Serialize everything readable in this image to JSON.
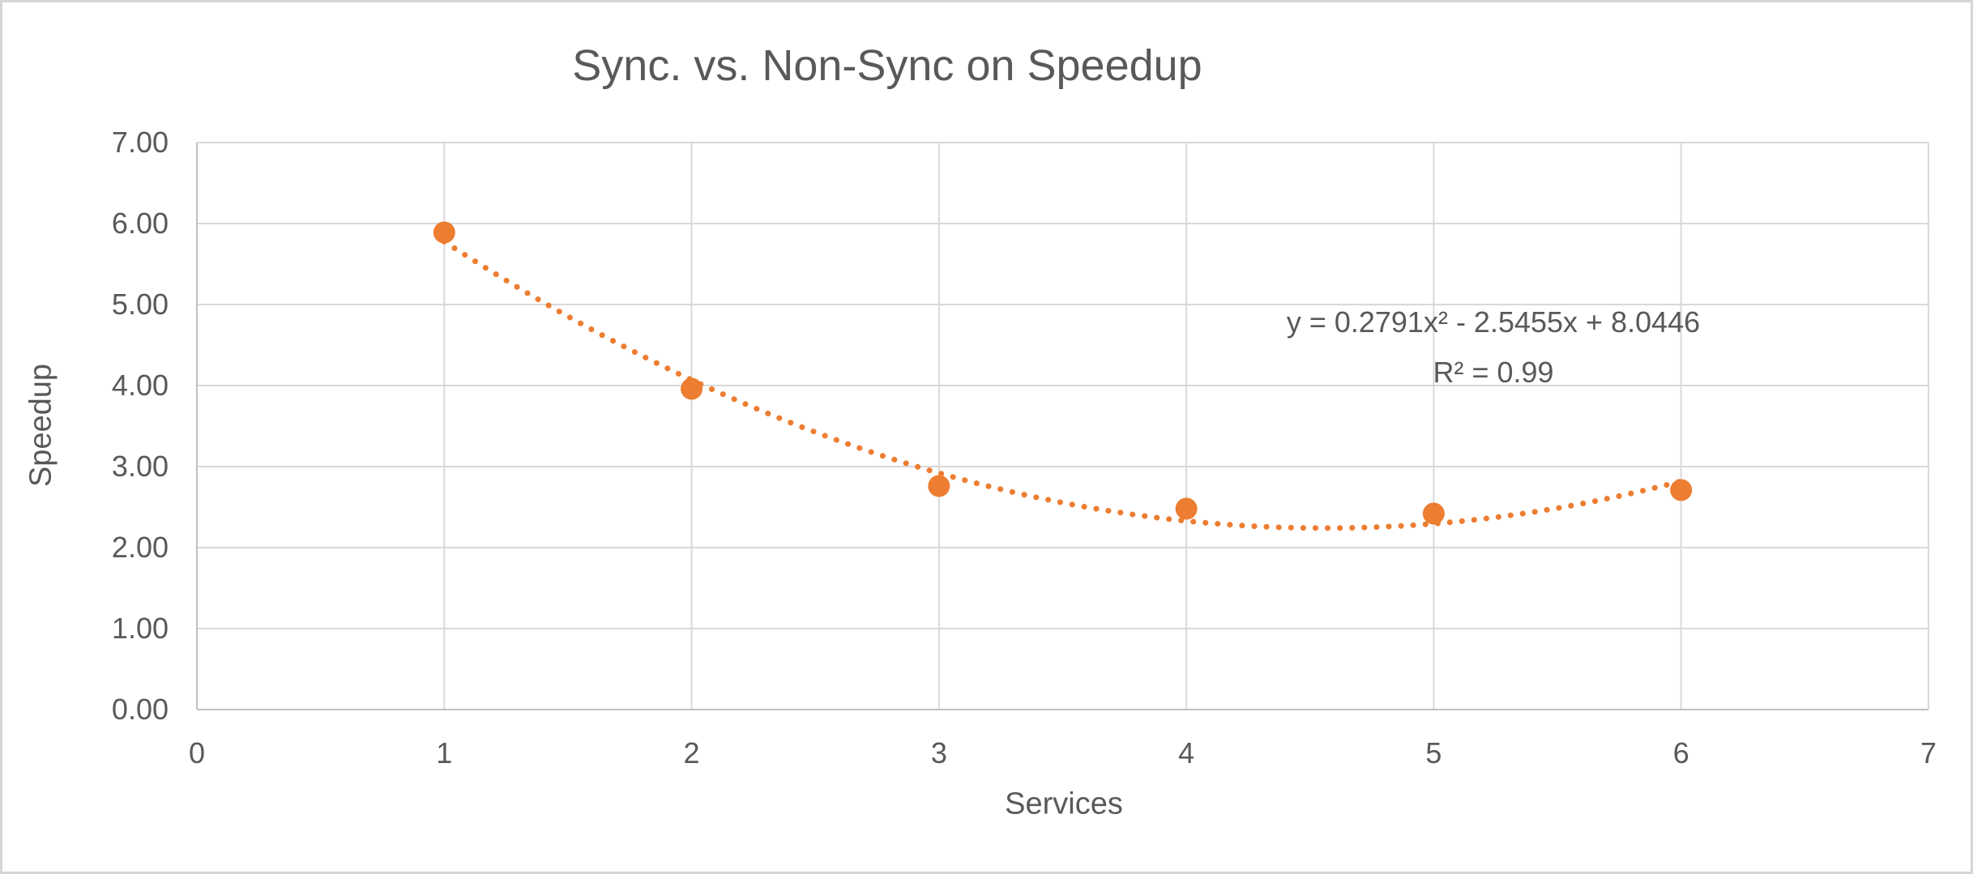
{
  "chart": {
    "title": "Sync. vs. Non-Sync on Speedup",
    "y_axis": {
      "label": "Speedup",
      "ticks": [
        "0.00",
        "1.00",
        "2.00",
        "3.00",
        "4.00",
        "5.00",
        "6.00",
        "7.00"
      ]
    },
    "x_axis": {
      "label": "Services",
      "ticks": [
        "0",
        "1",
        "2",
        "3",
        "4",
        "5",
        "6",
        "7"
      ]
    },
    "annotation": {
      "equation": "y = 0.2791x² - 2.5455x + 8.0446",
      "r_squared": "R² = 0.99"
    },
    "colors": {
      "series_orange": "#ED7D31",
      "text_gray": "#595959",
      "gridline": "#D9D9D9",
      "axis_line": "#C0C0C0",
      "chart_border": "#D6D6D6",
      "background": "#FFFFFF"
    }
  },
  "chart_data": {
    "type": "scatter",
    "title": "Sync. vs. Non-Sync on Speedup",
    "xlabel": "Services",
    "ylabel": "Speedup",
    "x": [
      1,
      2,
      3,
      4,
      5,
      6
    ],
    "y": [
      5.89,
      3.96,
      2.76,
      2.48,
      2.42,
      2.71
    ],
    "xlim": [
      0,
      7
    ],
    "ylim": [
      0,
      7
    ],
    "x_tick_step": 1,
    "y_tick_step": 1,
    "grid": true,
    "legend": false,
    "marker_color": "#ED7D31",
    "trendline": {
      "type": "polynomial",
      "order": 2,
      "a": 0.2791,
      "b": -2.5455,
      "c": 8.0446,
      "x_start": 1,
      "x_end": 6,
      "style": "dotted",
      "color": "#ED7D31",
      "equation_text": "y = 0.2791x² - 2.5455x + 8.0446",
      "r_squared_text": "R² = 0.99",
      "r_squared_value": 0.99
    }
  }
}
